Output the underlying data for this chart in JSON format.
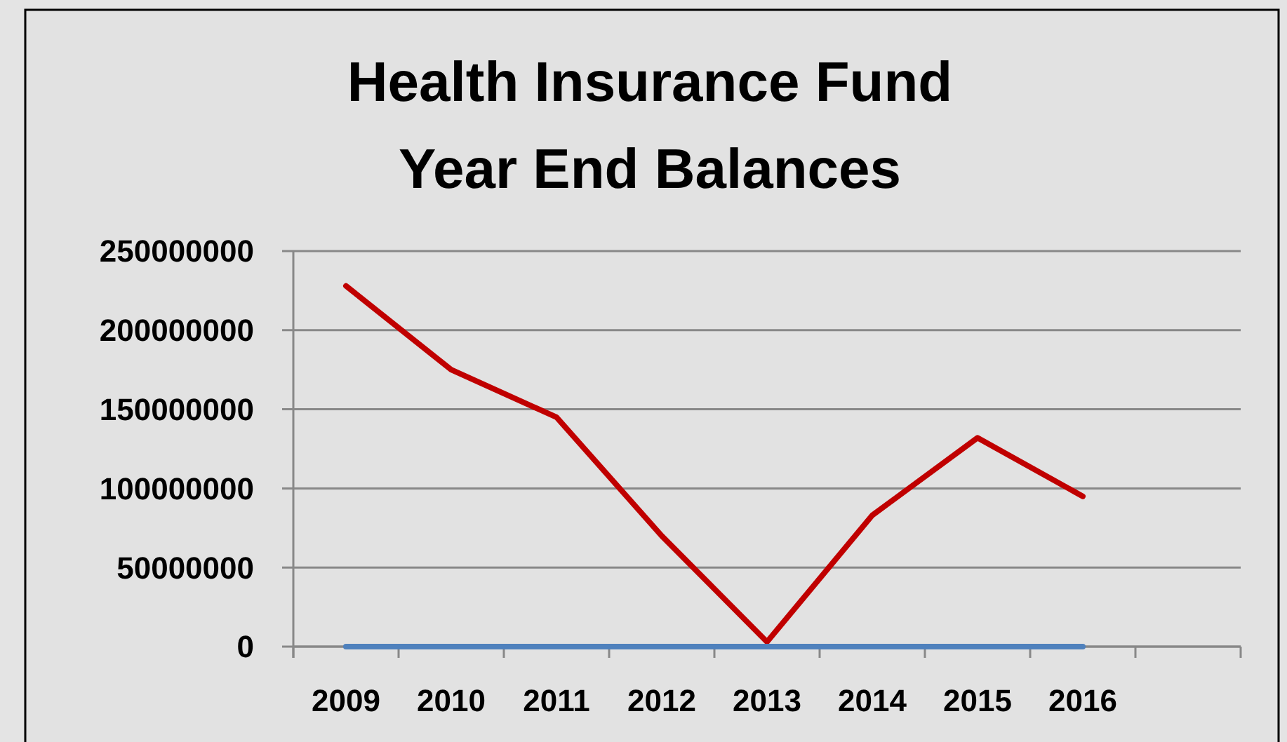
{
  "chart_data": {
    "type": "line",
    "title": "Health Insurance Fund\nYear End Balances",
    "categories": [
      "2009",
      "2010",
      "2011",
      "2012",
      "2013",
      "2014",
      "2015",
      "2016",
      null
    ],
    "series": [
      {
        "color": "#c00000",
        "values": [
          228000000,
          175000000,
          145000000,
          70000000,
          3000000,
          83000000,
          132000000,
          95000000,
          null
        ]
      },
      {
        "color": "#4f81bd",
        "values": [
          0,
          0,
          0,
          0,
          0,
          0,
          0,
          0,
          null
        ]
      }
    ],
    "ylim": [
      0,
      250000000
    ],
    "yticks": [
      0,
      50000000,
      100000000,
      150000000,
      200000000,
      250000000
    ],
    "grid": "y",
    "marker": "none",
    "line_style": "solid"
  }
}
